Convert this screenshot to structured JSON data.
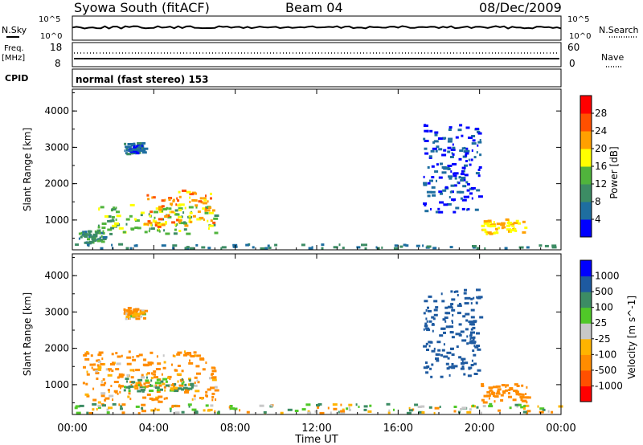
{
  "header": {
    "station": "Syowa South (fitACF)",
    "beam": "Beam 04",
    "date": "08/Dec/2009"
  },
  "top_panels": {
    "nsky_label": "N.Sky",
    "nsky_ticks": [
      "10^5",
      "10^0"
    ],
    "nsearch_label": "N.Search",
    "nsearch_ticks": [
      "10^5",
      "10^0"
    ],
    "freq_label": "Freq.",
    "freq_unit": "[MHz]",
    "freq_ticks": [
      "18",
      "8"
    ],
    "nave_label": "Nave",
    "nave_ticks": [
      "60",
      "0"
    ],
    "cpid_label": "CPID",
    "cpid_text": "normal (fast stereo) 153"
  },
  "colors": {
    "power": [
      "#0000ff",
      "#1e6ea0",
      "#3c8c64",
      "#50b43c",
      "#ffff00",
      "#ffa000",
      "#ff5000",
      "#ff0000"
    ],
    "velocity": [
      "#ff0000",
      "#ff5000",
      "#ff8c00",
      "#ffb400",
      "#c8c8c8",
      "#50c828",
      "#3c8c64",
      "#1e5aa0",
      "#0000ff"
    ],
    "ground_scatter": "#a0a0a0"
  },
  "chart_data": [
    {
      "type": "heatmap",
      "panel": "power",
      "ylabel": "Slant Range [km]",
      "yticks": [
        "1000",
        "2000",
        "3000",
        "4000"
      ],
      "ylim": [
        180,
        4600
      ],
      "xlim": [
        0,
        24
      ],
      "colorbar_label": "Power [dB]",
      "colorbar_ticks": [
        "4",
        "8",
        "12",
        "16",
        "20",
        "24",
        "28"
      ],
      "colorbar_range": [
        0,
        32
      ],
      "regions": [
        {
          "t0": 1.2,
          "t1": 7.0,
          "r0": 600,
          "r1": 1400,
          "value": 14
        },
        {
          "t0": 3.5,
          "t1": 7.0,
          "r0": 800,
          "r1": 1800,
          "value": 22
        },
        {
          "t0": 0.3,
          "t1": 1.5,
          "r0": 350,
          "r1": 700,
          "value": 10
        },
        {
          "t0": 17.2,
          "t1": 20.0,
          "r0": 1200,
          "r1": 3600,
          "value": 4
        },
        {
          "t0": 20.0,
          "t1": 22.3,
          "r0": 600,
          "r1": 1000,
          "value": 20
        },
        {
          "t0": 2.5,
          "t1": 3.5,
          "r0": 2800,
          "r1": 3100,
          "value": 6
        },
        {
          "t0": 0.0,
          "t1": 24.0,
          "r0": 200,
          "r1": 320,
          "value": 8
        }
      ]
    },
    {
      "type": "heatmap",
      "panel": "velocity",
      "ylabel": "Slant Range [km]",
      "yticks": [
        "1000",
        "2000",
        "3000",
        "4000"
      ],
      "ylim": [
        180,
        4600
      ],
      "xlim": [
        0,
        24
      ],
      "xlabel": "Time UT",
      "xticks": [
        "00:00",
        "04:00",
        "08:00",
        "12:00",
        "16:00",
        "20:00",
        "00:00"
      ],
      "colorbar_label": "Velocity [m s^-1]",
      "colorbar_ticks": [
        "1000",
        "500",
        "100",
        "25",
        "-25",
        "-100",
        "-500",
        "-1000"
      ],
      "colorbar_range": [
        -1200,
        1200
      ],
      "regions": [
        {
          "t0": 0.5,
          "t1": 7.0,
          "r0": 500,
          "r1": 1900,
          "value": -200
        },
        {
          "t0": 2.5,
          "t1": 6.0,
          "r0": 800,
          "r1": 1200,
          "value": 150
        },
        {
          "t0": 17.2,
          "t1": 20.0,
          "r0": 1200,
          "r1": 3600,
          "value": 800
        },
        {
          "t0": 20.0,
          "t1": 22.3,
          "r0": 500,
          "r1": 1000,
          "value": -300
        },
        {
          "t0": 0.0,
          "t1": 24.0,
          "r0": 200,
          "r1": 450,
          "value": 0
        },
        {
          "t0": 2.5,
          "t1": 3.5,
          "r0": 2800,
          "r1": 3100,
          "value": -150
        }
      ]
    }
  ]
}
